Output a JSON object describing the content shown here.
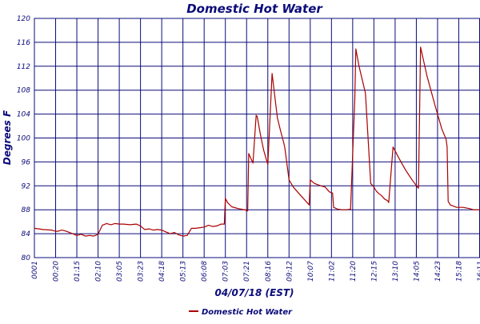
{
  "chart_data": {
    "type": "line",
    "title": "Domestic Hot Water",
    "xlabel": "04/07/18 (EST)",
    "ylabel": "Degrees F",
    "ylim": [
      80,
      120
    ],
    "yticks": [
      80,
      84,
      88,
      92,
      96,
      100,
      104,
      108,
      112,
      116,
      120
    ],
    "x_tick_labels": [
      "0001",
      "00:20",
      "01:15",
      "02:10",
      "03:05",
      "03:23",
      "04:18",
      "05:13",
      "06:08",
      "07:03",
      "07:21",
      "08:16",
      "09:12",
      "10:07",
      "11:02",
      "11:20",
      "12:15",
      "13:10",
      "14:05",
      "14:23",
      "15:18",
      "16:11"
    ],
    "grid": true,
    "legend": "bottom-center",
    "colors": {
      "series": "#aa0000",
      "grid": "#0b0b7a",
      "text": "#0b0b7a",
      "background": "#ffffff"
    },
    "series": [
      {
        "name": "Domestic Hot Water",
        "x_index": [
          0,
          0.4,
          0.8,
          1.0,
          1.1,
          1.3,
          1.5,
          1.8,
          2.0,
          2.2,
          2.4,
          2.6,
          2.8,
          3.0,
          3.2,
          3.4,
          3.6,
          3.8,
          4.0,
          4.2,
          4.5,
          4.8,
          5.0,
          5.2,
          5.4,
          5.6,
          5.8,
          6.0,
          6.2,
          6.4,
          6.6,
          6.8,
          7.0,
          7.2,
          7.4,
          7.6,
          7.8,
          8.0,
          8.2,
          8.4,
          8.6,
          8.8,
          8.95,
          9.0,
          9.1,
          9.3,
          9.6,
          9.9,
          10.05,
          10.1,
          10.3,
          10.45,
          10.5,
          10.65,
          10.8,
          10.95,
          11.0,
          11.2,
          11.45,
          11.6,
          11.75,
          11.8,
          12.0,
          12.2,
          12.4,
          12.6,
          12.8,
          12.95,
          13.0,
          13.2,
          13.5,
          13.7,
          13.9,
          14.05,
          14.1,
          14.3,
          14.5,
          14.7,
          14.9,
          15.1,
          15.15,
          15.3,
          15.6,
          15.85,
          16.0,
          16.05,
          16.1,
          16.2,
          16.35,
          16.5,
          16.65,
          16.7,
          16.9,
          17.2,
          17.5,
          17.8,
          18.05,
          18.1,
          18.2,
          18.5,
          18.9,
          19.2,
          19.4,
          19.45,
          19.5,
          19.6,
          19.9,
          20.2,
          20.5,
          20.7,
          20.75,
          20.9,
          21.2,
          21.5
        ],
        "values": [
          84.9,
          84.7,
          84.6,
          84.4,
          84.4,
          84.6,
          84.4,
          84.0,
          83.7,
          83.9,
          83.6,
          83.7,
          83.6,
          83.9,
          85.4,
          85.7,
          85.5,
          85.7,
          85.6,
          85.6,
          85.5,
          85.6,
          85.3,
          84.7,
          84.8,
          84.6,
          84.7,
          84.6,
          84.3,
          84.0,
          84.2,
          83.8,
          83.6,
          83.7,
          84.9,
          84.9,
          85.0,
          85.1,
          85.4,
          85.2,
          85.3,
          85.6,
          85.6,
          89.9,
          89.2,
          88.5,
          88.2,
          88.0,
          87.8,
          97.4,
          95.8,
          103.8,
          103.6,
          100.6,
          98.0,
          96.2,
          95.6,
          110.8,
          103.4,
          101.2,
          99.2,
          98.4,
          93.0,
          91.8,
          91.0,
          90.2,
          89.4,
          88.8,
          93.0,
          92.4,
          92.0,
          91.8,
          91.0,
          90.8,
          88.4,
          88.1,
          88.0,
          88.0,
          88.1,
          106.5,
          114.9,
          112.0,
          107.5,
          92.4,
          91.8,
          91.5,
          91.2,
          90.8,
          90.4,
          89.8,
          89.5,
          89.2,
          98.5,
          96.5,
          94.6,
          93.0,
          91.8,
          91.6,
          115.2,
          110.4,
          105.2,
          101.5,
          99.8,
          98.5,
          89.4,
          88.8,
          88.4,
          88.4,
          88.2,
          88.0,
          88.0,
          88.0,
          88.0,
          88.1
        ]
      }
    ]
  }
}
